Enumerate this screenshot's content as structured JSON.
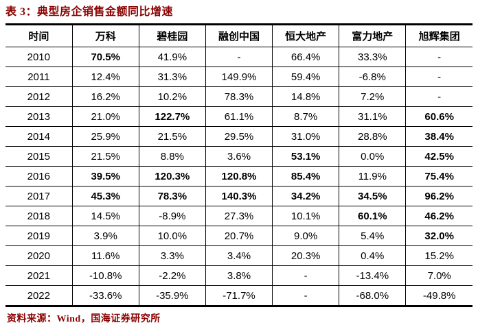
{
  "title": "表 3：典型房企销售金额同比增速",
  "source": "资料来源：Wind，国海证券研究所",
  "colors": {
    "accent_red": "#8B0000",
    "border_black": "#000000",
    "background": "#ffffff"
  },
  "table": {
    "headers": [
      "时间",
      "万科",
      "碧桂园",
      "融创中国",
      "恒大地产",
      "富力地产",
      "旭辉集团"
    ],
    "rows": [
      {
        "year": "2010",
        "cells": [
          {
            "text": "70.5%",
            "bold": true
          },
          {
            "text": "41.9%",
            "bold": false
          },
          {
            "text": "-",
            "bold": false
          },
          {
            "text": "66.4%",
            "bold": false
          },
          {
            "text": "33.3%",
            "bold": false
          },
          {
            "text": "-",
            "bold": false
          }
        ]
      },
      {
        "year": "2011",
        "cells": [
          {
            "text": "12.4%",
            "bold": false
          },
          {
            "text": "31.3%",
            "bold": false
          },
          {
            "text": "149.9%",
            "bold": false
          },
          {
            "text": "59.4%",
            "bold": false
          },
          {
            "text": "-6.8%",
            "bold": false
          },
          {
            "text": "-",
            "bold": false
          }
        ]
      },
      {
        "year": "2012",
        "cells": [
          {
            "text": "16.2%",
            "bold": false
          },
          {
            "text": "10.2%",
            "bold": false
          },
          {
            "text": "78.3%",
            "bold": false
          },
          {
            "text": "14.8%",
            "bold": false
          },
          {
            "text": "7.2%",
            "bold": false
          },
          {
            "text": "-",
            "bold": false
          }
        ]
      },
      {
        "year": "2013",
        "cells": [
          {
            "text": "21.0%",
            "bold": false
          },
          {
            "text": "122.7%",
            "bold": true
          },
          {
            "text": "61.1%",
            "bold": false
          },
          {
            "text": "8.7%",
            "bold": false
          },
          {
            "text": "31.1%",
            "bold": false
          },
          {
            "text": "60.6%",
            "bold": true
          }
        ]
      },
      {
        "year": "2014",
        "cells": [
          {
            "text": "25.9%",
            "bold": false
          },
          {
            "text": "21.5%",
            "bold": false
          },
          {
            "text": "29.5%",
            "bold": false
          },
          {
            "text": "31.0%",
            "bold": false
          },
          {
            "text": "28.8%",
            "bold": false
          },
          {
            "text": "38.4%",
            "bold": true
          }
        ]
      },
      {
        "year": "2015",
        "cells": [
          {
            "text": "21.5%",
            "bold": false
          },
          {
            "text": "8.8%",
            "bold": false
          },
          {
            "text": "3.6%",
            "bold": false
          },
          {
            "text": "53.1%",
            "bold": true
          },
          {
            "text": "0.0%",
            "bold": false
          },
          {
            "text": "42.5%",
            "bold": true
          }
        ]
      },
      {
        "year": "2016",
        "cells": [
          {
            "text": "39.5%",
            "bold": true
          },
          {
            "text": "120.3%",
            "bold": true
          },
          {
            "text": "120.8%",
            "bold": true
          },
          {
            "text": "85.4%",
            "bold": true
          },
          {
            "text": "11.9%",
            "bold": false
          },
          {
            "text": "75.4%",
            "bold": true
          }
        ]
      },
      {
        "year": "2017",
        "cells": [
          {
            "text": "45.3%",
            "bold": true
          },
          {
            "text": "78.3%",
            "bold": true
          },
          {
            "text": "140.3%",
            "bold": true
          },
          {
            "text": "34.2%",
            "bold": true
          },
          {
            "text": "34.5%",
            "bold": true
          },
          {
            "text": "96.2%",
            "bold": true
          }
        ]
      },
      {
        "year": "2018",
        "cells": [
          {
            "text": "14.5%",
            "bold": false
          },
          {
            "text": "-8.9%",
            "bold": false
          },
          {
            "text": "27.3%",
            "bold": false
          },
          {
            "text": "10.1%",
            "bold": false
          },
          {
            "text": "60.1%",
            "bold": true
          },
          {
            "text": "46.2%",
            "bold": true
          }
        ]
      },
      {
        "year": "2019",
        "cells": [
          {
            "text": "3.9%",
            "bold": false
          },
          {
            "text": "10.0%",
            "bold": false
          },
          {
            "text": "20.7%",
            "bold": false
          },
          {
            "text": "9.0%",
            "bold": false
          },
          {
            "text": "5.4%",
            "bold": false
          },
          {
            "text": "32.0%",
            "bold": true
          }
        ]
      },
      {
        "year": "2020",
        "cells": [
          {
            "text": "11.6%",
            "bold": false
          },
          {
            "text": "3.3%",
            "bold": false
          },
          {
            "text": "3.4%",
            "bold": false
          },
          {
            "text": "20.3%",
            "bold": false
          },
          {
            "text": "0.4%",
            "bold": false
          },
          {
            "text": "15.2%",
            "bold": false
          }
        ]
      },
      {
        "year": "2021",
        "cells": [
          {
            "text": "-10.8%",
            "bold": false
          },
          {
            "text": "-2.2%",
            "bold": false
          },
          {
            "text": "3.8%",
            "bold": false
          },
          {
            "text": "-",
            "bold": false
          },
          {
            "text": "-13.4%",
            "bold": false
          },
          {
            "text": "7.0%",
            "bold": false
          }
        ]
      },
      {
        "year": "2022",
        "cells": [
          {
            "text": "-33.6%",
            "bold": false
          },
          {
            "text": "-35.9%",
            "bold": false
          },
          {
            "text": "-71.7%",
            "bold": false
          },
          {
            "text": "-",
            "bold": false
          },
          {
            "text": "-68.0%",
            "bold": false
          },
          {
            "text": "-49.8%",
            "bold": false
          }
        ]
      }
    ]
  }
}
